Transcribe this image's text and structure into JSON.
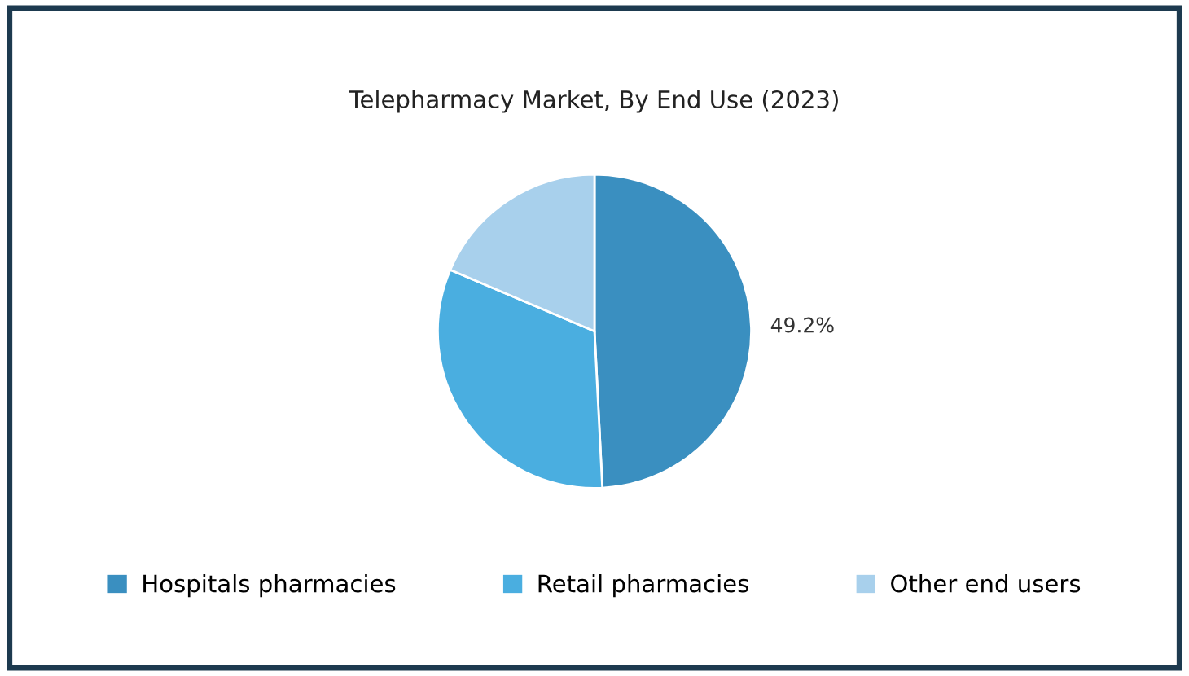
{
  "chart_data": {
    "type": "pie",
    "title": "Telepharmacy Market, By End Use (2023)",
    "categories": [
      "Hospitals pharmacies",
      "Retail pharmacies",
      "Other end users"
    ],
    "values": [
      49.2,
      32.2,
      18.6
    ],
    "colors": [
      "#3a8fc0",
      "#4aaee0",
      "#a8d0ec"
    ],
    "value_labels": [
      "49.2%",
      null,
      null
    ],
    "legend": "bottom"
  }
}
